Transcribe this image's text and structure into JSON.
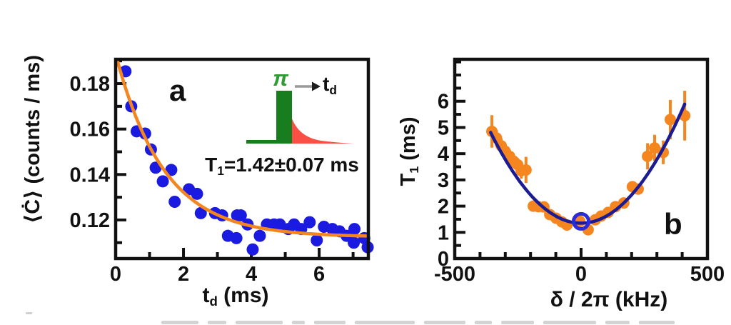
{
  "figure": {
    "panel_a": {
      "letter": "a",
      "ylabel": "⟨Ċ⟩ (counts / ms)",
      "xlabel": {
        "main": "t",
        "sub": "d",
        "rest": " (ms)"
      },
      "annotation": {
        "main": "T",
        "sub": "1",
        "rest": "=1.42±0.07 ms"
      },
      "inset": {
        "pulse_label": "π",
        "delay_label": {
          "main": "t",
          "sub": "d"
        },
        "pulse_color": "#177d1f",
        "pulse_label_color": "#2e9d35",
        "decay_color": "#f94f45",
        "arrow_color": "#999999",
        "arrowhead_color": "#1c1c1c"
      }
    },
    "panel_b": {
      "letter": "b",
      "ylabel": {
        "main": "T",
        "sub": "1",
        "rest": " (ms)"
      },
      "xlabel": "δ / 2π (kHz)"
    },
    "axis_color": "#111111",
    "background": "#ffffff"
  },
  "chart_data": [
    {
      "type": "scatter",
      "panel": "a",
      "title": "",
      "xlabel": "t_d (ms)",
      "ylabel": "⟨Ċ⟩ (counts / ms)",
      "xlim": [
        0,
        7.45
      ],
      "ylim": [
        0.103,
        0.1907
      ],
      "grid": false,
      "x_ticks": {
        "values": [
          0,
          2,
          4,
          6
        ],
        "labels": [
          "0",
          "2",
          "4",
          "6"
        ]
      },
      "x_minor_ticks": [
        1,
        3,
        5,
        7
      ],
      "y_ticks": {
        "values": [
          0.12,
          0.14,
          0.16,
          0.18
        ],
        "labels": [
          "0.12",
          "0.14",
          "0.16",
          "0.18"
        ]
      },
      "y_minor_ticks": [
        0.11,
        0.13,
        0.15,
        0.17,
        0.19
      ],
      "marker_color": "#1b1ae0",
      "points": [
        [
          0.29,
          0.1854
        ],
        [
          0.46,
          0.17
        ],
        [
          0.62,
          0.159
        ],
        [
          0.87,
          0.158
        ],
        [
          1.04,
          0.151
        ],
        [
          1.18,
          0.143
        ],
        [
          1.39,
          0.137
        ],
        [
          1.64,
          0.142
        ],
        [
          1.74,
          0.128
        ],
        [
          2.16,
          0.1335
        ],
        [
          2.4,
          0.1315
        ],
        [
          2.51,
          0.123
        ],
        [
          2.93,
          0.123
        ],
        [
          3.14,
          0.122
        ],
        [
          3.31,
          0.113
        ],
        [
          3.56,
          0.112
        ],
        [
          3.58,
          0.122
        ],
        [
          3.69,
          0.122
        ],
        [
          3.89,
          0.118
        ],
        [
          4.04,
          0.107
        ],
        [
          4.25,
          0.113
        ],
        [
          4.46,
          0.118
        ],
        [
          4.67,
          0.118
        ],
        [
          4.84,
          0.118
        ],
        [
          5.09,
          0.116
        ],
        [
          5.26,
          0.118
        ],
        [
          5.47,
          0.116
        ],
        [
          5.72,
          0.119
        ],
        [
          5.93,
          0.111
        ],
        [
          6.14,
          0.117
        ],
        [
          6.39,
          0.116
        ],
        [
          6.6,
          0.115
        ],
        [
          6.81,
          0.113
        ],
        [
          7.02,
          0.11
        ],
        [
          7.04,
          0.116
        ],
        [
          7.33,
          0.112
        ],
        [
          7.43,
          0.108
        ]
      ],
      "fit": {
        "type": "exponential",
        "y0": 0.1125,
        "amplitude": 0.0805,
        "tau_ms": 1.42,
        "t_range": [
          0.06,
          7.45
        ],
        "color": "#f5861f"
      },
      "annotation": "T1 = 1.42 ± 0.07 ms"
    },
    {
      "type": "scatter",
      "panel": "b",
      "title": "",
      "xlabel": "δ / 2π (kHz)",
      "ylabel": "T1 (ms)",
      "xlim": [
        -500,
        500
      ],
      "ylim": [
        0,
        7.6
      ],
      "grid": false,
      "x_ticks": {
        "values": [
          -500,
          0,
          500
        ],
        "labels": [
          "-500",
          "0",
          "500"
        ]
      },
      "x_minor_ticks": [
        -400,
        -300,
        -200,
        -100,
        100,
        200,
        300,
        400
      ],
      "y_ticks": {
        "values": [
          0,
          1,
          2,
          3,
          4,
          5,
          6
        ],
        "labels": [
          "0",
          "1",
          "2",
          "3",
          "4",
          "5",
          "6"
        ]
      },
      "y_minor_ticks": [
        0.5,
        1.5,
        2.5,
        3.5,
        4.5,
        5.5,
        6.5,
        7,
        7.5
      ],
      "marker_color": "#f5861f",
      "points_with_error": [
        [
          -353,
          4.85,
          0.62
        ],
        [
          -335,
          4.6,
          0.3
        ],
        [
          -316,
          4.3,
          0.28
        ],
        [
          -301,
          4.1,
          0.25
        ],
        [
          -283,
          3.9,
          0.25
        ],
        [
          -268,
          3.72,
          0.25
        ],
        [
          -251,
          3.58,
          0.25
        ],
        [
          -237,
          3.35,
          0.3
        ],
        [
          -218,
          3.38,
          0.5
        ],
        [
          -189,
          2.0,
          0.18
        ],
        [
          -169,
          1.98,
          0.18
        ],
        [
          -147,
          1.97,
          0.18
        ],
        [
          -124,
          1.68,
          0.15
        ],
        [
          -99,
          1.54,
          0.15
        ],
        [
          -76,
          1.4,
          0.12
        ],
        [
          -56,
          1.28,
          0.12
        ],
        [
          -5,
          1.42,
          0.12
        ],
        [
          28,
          1.1,
          0.12
        ],
        [
          56,
          1.48,
          0.12
        ],
        [
          79,
          1.62,
          0.12
        ],
        [
          107,
          1.76,
          0.14
        ],
        [
          136,
          1.98,
          0.15
        ],
        [
          169,
          2.12,
          0.16
        ],
        [
          203,
          2.74,
          0.2
        ],
        [
          226,
          2.65,
          0.2
        ],
        [
          263,
          3.9,
          0.5
        ],
        [
          291,
          4.22,
          0.5
        ],
        [
          325,
          4.05,
          0.45
        ],
        [
          353,
          5.3,
          0.75
        ],
        [
          410,
          5.45,
          0.95
        ]
      ],
      "fit": {
        "type": "parabola",
        "t1_min_ms": 1.35,
        "curvature": 2.7e-05,
        "x_range": [
          -358,
          413
        ],
        "color": "#1b1b94"
      },
      "reference_point": {
        "x": 0,
        "y": 1.42,
        "style": "open-circle",
        "color": "#2b2bdc"
      }
    }
  ]
}
